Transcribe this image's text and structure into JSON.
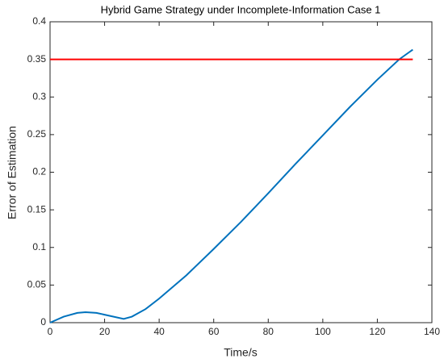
{
  "chart_data": {
    "type": "line",
    "title": "Hybrid Game Strategy under Incomplete-Information Case 1",
    "xlabel": "Time/s",
    "ylabel": "Error of Estimation",
    "series": [
      {
        "color": "#0072bd",
        "x": [
          0,
          5,
          10,
          13,
          17,
          22,
          27,
          30,
          35,
          40,
          50,
          60,
          70,
          80,
          90,
          100,
          110,
          120,
          128,
          133
        ],
        "values": [
          0,
          0.008,
          0.013,
          0.014,
          0.013,
          0.009,
          0.005,
          0.008,
          0.018,
          0.032,
          0.063,
          0.098,
          0.134,
          0.172,
          0.211,
          0.249,
          0.287,
          0.323,
          0.35,
          0.363
        ]
      },
      {
        "color": "#ff0000",
        "x": [
          0,
          133
        ],
        "values": [
          0.35,
          0.35
        ]
      }
    ],
    "xlim": [
      0,
      140
    ],
    "xticks": [
      0,
      20,
      40,
      60,
      80,
      100,
      120,
      140
    ],
    "ylim": [
      0,
      0.4
    ],
    "yticks": [
      0,
      0.05,
      0.1,
      0.15,
      0.2,
      0.25,
      0.3,
      0.35,
      0.4
    ],
    "grid": false
  }
}
